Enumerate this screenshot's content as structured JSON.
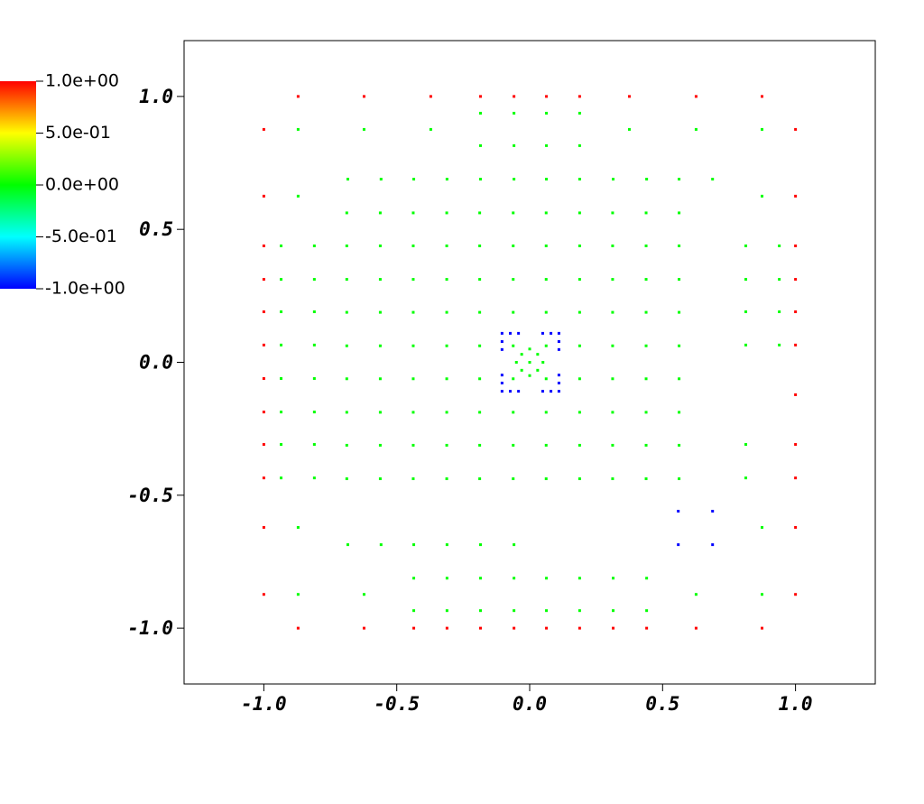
{
  "chart_data": {
    "type": "scatter",
    "xlim": [
      -1.3,
      1.3
    ],
    "ylim": [
      -1.21,
      1.21
    ],
    "xticks": [
      {
        "value": -1,
        "label": "-1.0"
      },
      -0.5,
      {
        "value": 0,
        "label": "0.0"
      },
      0.5,
      {
        "value": 1,
        "label": "1.0"
      }
    ],
    "yticks": [
      {
        "value": -1,
        "label": "-1.0"
      },
      -0.5,
      {
        "value": 0,
        "label": "0.0"
      },
      0.5,
      {
        "value": 1,
        "label": "1.0"
      }
    ],
    "colorbar": {
      "lim": [
        -1,
        1
      ],
      "ticks": [
        {
          "value": 1,
          "label": "1.0e+00"
        },
        {
          "value": 0.5,
          "label": "5.0e-01"
        },
        {
          "value": 0,
          "label": "0.0e+00"
        },
        {
          "value": -0.5,
          "label": "-5.0e-01"
        },
        {
          "value": -1,
          "label": "-1.0e+00"
        }
      ],
      "colors": [
        "#0000ff",
        "#00ffff",
        "#00ff00",
        "#ffff00",
        "#ff0000"
      ]
    },
    "series": [
      {
        "color": "#ff0000",
        "x": [
          -0.871,
          -0.623,
          -0.372,
          -0.185,
          -0.059,
          0.063,
          0.188,
          0.375,
          0.626,
          0.874,
          -0.871,
          -0.623,
          -0.436,
          -0.311,
          -0.185,
          -0.059,
          0.063,
          0.188,
          0.314,
          0.44,
          0.626,
          0.874,
          -1,
          -1,
          -1,
          -1,
          -1,
          -1,
          -1,
          -1,
          -1,
          -1,
          -1,
          -1,
          1,
          1,
          1,
          1,
          1,
          1,
          1,
          1,
          1,
          1,
          1
        ],
        "y": [
          1,
          1,
          1,
          1,
          1,
          1,
          1,
          1,
          1,
          1,
          -1,
          -1,
          -1,
          -1,
          -1,
          -1,
          -1,
          -1,
          -1,
          -1,
          -1,
          -1,
          0.876,
          0.625,
          0.438,
          0.312,
          0.19,
          0.065,
          -0.061,
          -0.187,
          -0.309,
          -0.435,
          -0.621,
          -0.873,
          0.876,
          0.625,
          0.438,
          0.312,
          0.19,
          0.065,
          -0.122,
          -0.309,
          -0.435,
          -0.621,
          -0.873
        ]
      },
      {
        "color": "#00ff00",
        "x": [
          -0.688,
          -0.562,
          -0.438,
          -0.312,
          -0.188,
          -0.062,
          0.062,
          0.188,
          0.312,
          0.438,
          0.562,
          -0.688,
          -0.562,
          -0.438,
          -0.312,
          -0.188,
          -0.062,
          0.062,
          0.188,
          0.312,
          0.438,
          0.562,
          -0.688,
          -0.562,
          -0.438,
          -0.312,
          -0.188,
          -0.062,
          0.062,
          0.188,
          0.312,
          0.438,
          0.562,
          -0.688,
          -0.562,
          -0.438,
          -0.312,
          -0.188,
          -0.062,
          0.062,
          0.188,
          0.312,
          0.438,
          0.562,
          -0.688,
          -0.562,
          -0.438,
          -0.312,
          -0.188,
          -0.062,
          0.062,
          0.188,
          0.312,
          0.438,
          0.562,
          -0.688,
          -0.562,
          -0.438,
          -0.312,
          -0.188,
          -0.062,
          0.062,
          0.188,
          0.312,
          0.438,
          0.562,
          -0.688,
          -0.562,
          -0.438,
          -0.312,
          -0.188,
          -0.062,
          0.062,
          0.188,
          0.312,
          0.438,
          0.562,
          -0.688,
          -0.562,
          -0.438,
          -0.312,
          -0.188,
          -0.062,
          0.062,
          0.188,
          0.312,
          0.438,
          0.562,
          -0.688,
          -0.562,
          -0.438,
          -0.312,
          -0.188,
          -0.062,
          0.062,
          0.188,
          0.312,
          0.438,
          0.562,
          -0.871,
          -0.623,
          -0.372,
          0.375,
          0.626,
          0.874,
          -0.185,
          -0.059,
          0.063,
          0.188,
          -0.185,
          -0.059,
          0.063,
          0.188,
          -0.684,
          -0.559,
          -0.436,
          -0.311,
          -0.185,
          -0.059,
          0.063,
          0.188,
          0.314,
          0.44,
          0.562,
          0.688,
          -0.871,
          0.874,
          -0.935,
          -0.935,
          -0.935,
          -0.935,
          -0.935,
          -0.935,
          -0.935,
          -0.935,
          -0.81,
          -0.81,
          -0.81,
          -0.81,
          -0.81,
          -0.81,
          -0.81,
          -0.81,
          0.813,
          0.813,
          0.813,
          0.813,
          0.813,
          0.813,
          0.939,
          0.939,
          0.939,
          0.939,
          -0.871,
          0.874,
          -0.684,
          -0.559,
          -0.436,
          -0.311,
          -0.185,
          -0.059,
          -0.436,
          -0.311,
          -0.185,
          -0.059,
          0.063,
          0.188,
          0.314,
          0.44,
          -0.871,
          -0.623,
          0.626,
          0.874,
          -0.436,
          -0.311,
          -0.185,
          -0.059,
          0.063,
          0.188,
          0.314,
          0.44,
          0,
          0.03,
          -0.03,
          0.03,
          -0.03,
          0.05,
          -0.05,
          0,
          0
        ],
        "y": [
          0.562,
          0.562,
          0.562,
          0.562,
          0.562,
          0.562,
          0.562,
          0.562,
          0.562,
          0.562,
          0.562,
          0.438,
          0.438,
          0.438,
          0.438,
          0.438,
          0.438,
          0.438,
          0.438,
          0.438,
          0.438,
          0.438,
          0.312,
          0.312,
          0.312,
          0.312,
          0.312,
          0.312,
          0.312,
          0.312,
          0.312,
          0.312,
          0.312,
          0.188,
          0.188,
          0.188,
          0.188,
          0.188,
          0.188,
          0.188,
          0.188,
          0.188,
          0.188,
          0.188,
          0.062,
          0.062,
          0.062,
          0.062,
          0.062,
          0.062,
          0.062,
          0.062,
          0.062,
          0.062,
          0.062,
          -0.062,
          -0.062,
          -0.062,
          -0.062,
          -0.062,
          -0.062,
          -0.062,
          -0.062,
          -0.062,
          -0.062,
          -0.062,
          -0.188,
          -0.188,
          -0.188,
          -0.188,
          -0.188,
          -0.188,
          -0.188,
          -0.188,
          -0.188,
          -0.188,
          -0.188,
          -0.312,
          -0.312,
          -0.312,
          -0.312,
          -0.312,
          -0.312,
          -0.312,
          -0.312,
          -0.312,
          -0.312,
          -0.312,
          -0.438,
          -0.438,
          -0.438,
          -0.438,
          -0.438,
          -0.438,
          -0.438,
          -0.438,
          -0.438,
          -0.438,
          -0.438,
          0.876,
          0.876,
          0.876,
          0.876,
          0.876,
          0.876,
          0.937,
          0.937,
          0.937,
          0.937,
          0.815,
          0.815,
          0.815,
          0.815,
          0.689,
          0.689,
          0.689,
          0.689,
          0.689,
          0.689,
          0.689,
          0.689,
          0.689,
          0.689,
          0.689,
          0.689,
          0.625,
          0.625,
          0.438,
          0.312,
          0.19,
          0.065,
          -0.061,
          -0.187,
          -0.309,
          -0.435,
          0.438,
          0.312,
          0.19,
          0.065,
          -0.061,
          -0.187,
          -0.309,
          -0.435,
          0.438,
          0.312,
          0.19,
          0.065,
          -0.309,
          -0.435,
          0.438,
          0.312,
          0.19,
          0.065,
          -0.621,
          -0.621,
          -0.686,
          -0.686,
          -0.686,
          -0.686,
          -0.686,
          -0.686,
          -0.812,
          -0.812,
          -0.812,
          -0.812,
          -0.812,
          -0.812,
          -0.812,
          -0.812,
          -0.873,
          -0.873,
          -0.873,
          -0.873,
          -0.934,
          -0.934,
          -0.934,
          -0.934,
          -0.934,
          -0.934,
          -0.934,
          -0.934,
          0,
          0.03,
          0.03,
          -0.03,
          -0.03,
          0,
          0,
          0.05,
          -0.05
        ]
      },
      {
        "color": "#0000ff",
        "x": [
          0.559,
          0.688,
          0.559,
          0.688,
          -0.104,
          -0.073,
          -0.042,
          0.049,
          0.08,
          0.11,
          -0.104,
          -0.073,
          -0.042,
          0.049,
          0.08,
          0.11,
          -0.104,
          -0.104,
          -0.104,
          -0.104,
          0.11,
          0.11,
          0.11,
          0.11
        ],
        "y": [
          -0.56,
          -0.56,
          -0.686,
          -0.686,
          0.109,
          0.109,
          0.109,
          0.109,
          0.109,
          0.109,
          -0.109,
          -0.109,
          -0.109,
          -0.109,
          -0.109,
          -0.109,
          0.078,
          0.048,
          -0.048,
          -0.078,
          0.078,
          0.048,
          -0.048,
          -0.078
        ]
      }
    ]
  }
}
